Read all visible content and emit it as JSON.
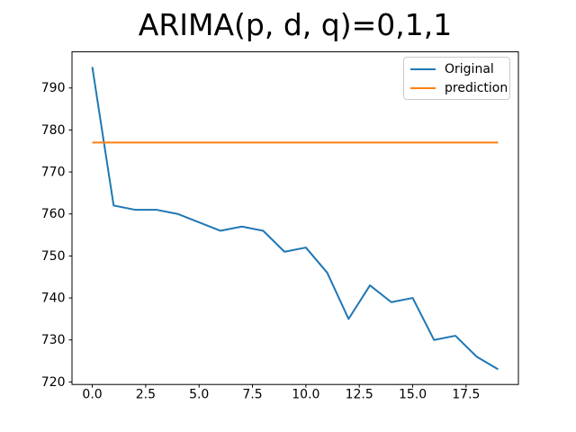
{
  "figure": {
    "background": "#ffffff"
  },
  "colors": {
    "axis": "#000000",
    "tick_text": "#000000",
    "legend_border": "#cccccc",
    "series_blue": "#1f77b4",
    "series_orange": "#ff7f0e"
  },
  "chart_data": {
    "type": "line",
    "title": "ARIMA(p, d, q)=0,1,1",
    "x": [
      0,
      1,
      2,
      3,
      4,
      5,
      6,
      7,
      8,
      9,
      10,
      11,
      12,
      13,
      14,
      15,
      16,
      17,
      18,
      19
    ],
    "series": [
      {
        "name": "Original",
        "color": "#1f77b4",
        "values": [
          795,
          762,
          761,
          761,
          760,
          758,
          756,
          757,
          756,
          751,
          752,
          746,
          735,
          743,
          739,
          740,
          730,
          731,
          726,
          723
        ]
      },
      {
        "name": "prediction",
        "color": "#ff7f0e",
        "values": [
          777,
          777,
          777,
          777,
          777,
          777,
          777,
          777,
          777,
          777,
          777,
          777,
          777,
          777,
          777,
          777,
          777,
          777,
          777,
          777
        ]
      }
    ],
    "xlabel": "",
    "ylabel": "",
    "xlim": [
      -0.95,
      19.95
    ],
    "ylim": [
      719.4,
      798.6
    ],
    "xticks": {
      "positions": [
        0,
        2.5,
        5,
        7.5,
        10,
        12.5,
        15,
        17.5
      ],
      "labels": [
        "0.0",
        "2.5",
        "5.0",
        "7.5",
        "10.0",
        "12.5",
        "15.0",
        "17.5"
      ]
    },
    "yticks": {
      "positions": [
        720,
        730,
        740,
        750,
        760,
        770,
        780,
        790
      ],
      "labels": [
        "720",
        "730",
        "740",
        "750",
        "760",
        "770",
        "780",
        "790"
      ]
    },
    "grid": false,
    "legend": {
      "position": "upper-right"
    }
  }
}
